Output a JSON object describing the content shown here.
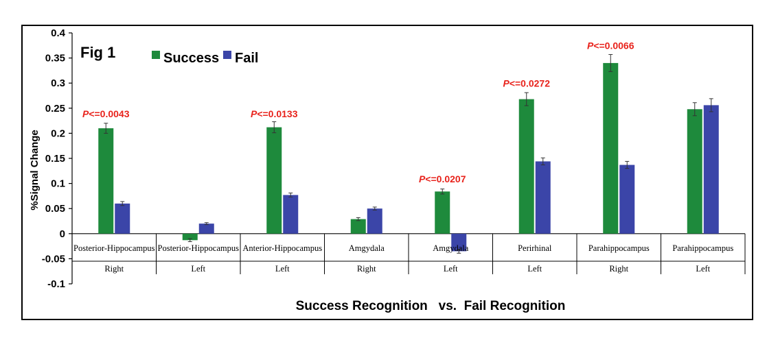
{
  "figure_label": "Fig 1",
  "chart_data": {
    "type": "bar",
    "categories": [
      {
        "region": "Posterior-Hippocampus",
        "side": "Right"
      },
      {
        "region": "Posterior-Hippocampus",
        "side": "Left"
      },
      {
        "region": "Anterior-Hippocampus",
        "side": "Left"
      },
      {
        "region": "Amgydala",
        "side": "Right"
      },
      {
        "region": "Amgydala",
        "side": "Left"
      },
      {
        "region": "Perirhinal",
        "side": "Left"
      },
      {
        "region": "Parahippocampus",
        "side": "Right"
      },
      {
        "region": "Parahippocampus",
        "side": "Left"
      }
    ],
    "series": [
      {
        "name": "Success",
        "color": "#1e8a3c",
        "values": [
          0.21,
          -0.013,
          0.212,
          0.029,
          0.084,
          0.268,
          0.34,
          0.248
        ],
        "errors": [
          0.01,
          0.003,
          0.011,
          0.003,
          0.005,
          0.013,
          0.017,
          0.013
        ]
      },
      {
        "name": "Fail",
        "color": "#3b45a8",
        "values": [
          0.06,
          0.02,
          0.077,
          0.05,
          -0.035,
          0.144,
          0.137,
          0.256
        ],
        "errors": [
          0.004,
          0.002,
          0.004,
          0.003,
          0.004,
          0.007,
          0.007,
          0.013
        ]
      }
    ],
    "annotations": [
      {
        "category_index": 0,
        "text": "P<=0.0043",
        "y": 0.232
      },
      {
        "category_index": 2,
        "text": "P<=0.0133",
        "y": 0.232
      },
      {
        "category_index": 4,
        "text": "P<=0.0207",
        "y": 0.102
      },
      {
        "category_index": 5,
        "text": "P<=0.0272",
        "y": 0.293
      },
      {
        "category_index": 6,
        "text": "P<=0.0066",
        "y": 0.368
      }
    ],
    "annotation_color": "#e8221b",
    "ylabel": "%Signal Change",
    "xlabel": "Success Recognition   vs.  Fail Recognition",
    "ylim": [
      -0.1,
      0.4
    ],
    "yticks": [
      0.4,
      0.35,
      0.3,
      0.25,
      0.2,
      0.15,
      0.1,
      0.05,
      0,
      -0.05,
      -0.1
    ],
    "ytick_labels": [
      "0.4",
      "0.35",
      "0.3",
      "0.25",
      "0.2",
      "0.15",
      "0.1",
      "0.05",
      "0",
      "-0.05",
      "-0.1"
    ],
    "grid": false,
    "legend_position": "top-left"
  }
}
